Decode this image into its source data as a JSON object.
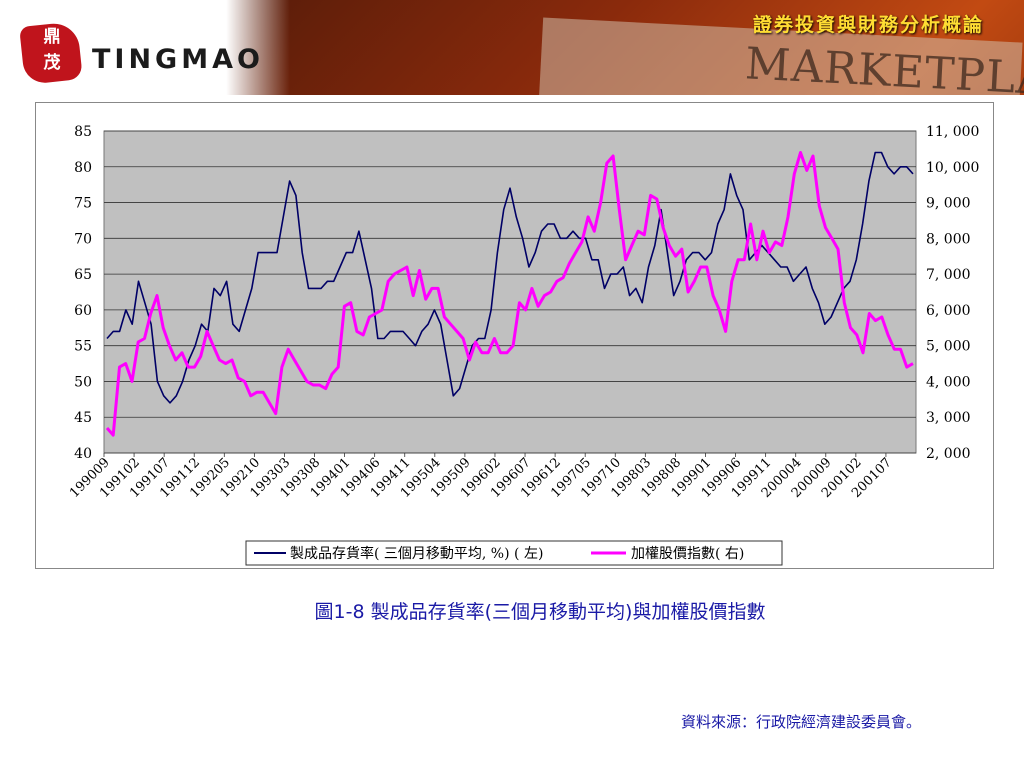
{
  "header": {
    "brand": "TINGMAO",
    "seal_text": "鼎茂",
    "slide_title": "證券投資與財務分析概論",
    "background_word": "MARKETPLACE"
  },
  "caption": "圖1-8 製成品存貨率(三個月移動平均)與加權股價指數",
  "source": "資料來源：行政院經濟建設委員會。",
  "colors": {
    "series1": "#000066",
    "series2": "#ff00ff",
    "plot_bg": "#c0c0c0",
    "caption": "#1a1aa6",
    "title": "#ffdd33"
  },
  "chart_data": {
    "type": "line",
    "x_tick_labels": [
      "199009",
      "199102",
      "199107",
      "199112",
      "199205",
      "199210",
      "199303",
      "199308",
      "199401",
      "199406",
      "199411",
      "199504",
      "199509",
      "199602",
      "199607",
      "199612",
      "199705",
      "199710",
      "199803",
      "199808",
      "199901",
      "199906",
      "199911",
      "200004",
      "200009",
      "200102",
      "200107"
    ],
    "y_left": {
      "min": 40,
      "max": 85,
      "ticks": [
        "85",
        "80",
        "75",
        "70",
        "65",
        "60",
        "55",
        "50",
        "45",
        "40"
      ]
    },
    "y_right": {
      "min": 2000,
      "max": 11000,
      "ticks": [
        "11, 000",
        "10, 000",
        "9, 000",
        "8, 000",
        "7, 000",
        "6, 000",
        "5, 000",
        "4, 000",
        "3, 000",
        "2, 000"
      ]
    },
    "grid": "horizontal",
    "legend_position": "bottom",
    "series": [
      {
        "name": "製成品存貨率( 三個月移動平均, %) ( 左)",
        "axis": "left",
        "values": [
          56,
          57,
          57,
          60,
          58,
          64,
          61,
          58,
          50,
          48,
          47,
          48,
          50,
          53,
          55,
          58,
          57,
          63,
          62,
          64,
          58,
          57,
          60,
          63,
          68,
          68,
          68,
          68,
          73,
          78,
          76,
          68,
          63,
          63,
          63,
          64,
          64,
          66,
          68,
          68,
          71,
          67,
          63,
          56,
          56,
          57,
          57,
          57,
          56,
          55,
          57,
          58,
          60,
          58,
          53,
          48,
          49,
          52,
          55,
          56,
          56,
          60,
          68,
          74,
          77,
          73,
          70,
          66,
          68,
          71,
          72,
          72,
          70,
          70,
          71,
          70,
          70,
          67,
          67,
          63,
          65,
          65,
          66,
          62,
          63,
          61,
          66,
          69,
          74,
          68,
          62,
          64,
          67,
          68,
          68,
          67,
          68,
          72,
          74,
          79,
          76,
          74,
          67,
          68,
          69,
          68,
          67,
          66,
          66,
          64,
          65,
          66,
          63,
          61,
          58,
          59,
          61,
          63,
          64,
          67,
          72,
          78,
          82,
          82,
          80,
          79,
          80,
          80,
          79
        ]
      },
      {
        "name": "加權股價指數( 右)",
        "axis": "right",
        "values": [
          2700,
          2500,
          4400,
          4500,
          4000,
          5100,
          5200,
          5900,
          6400,
          5500,
          5000,
          4600,
          4800,
          4400,
          4400,
          4700,
          5400,
          5000,
          4600,
          4500,
          4600,
          4100,
          4000,
          3600,
          3700,
          3700,
          3400,
          3100,
          4400,
          4900,
          4600,
          4300,
          4000,
          3900,
          3900,
          3800,
          4200,
          4400,
          6100,
          6200,
          5400,
          5300,
          5800,
          5900,
          6000,
          6800,
          7000,
          7100,
          7200,
          6400,
          7100,
          6300,
          6600,
          6600,
          5800,
          5600,
          5400,
          5200,
          4600,
          5100,
          4800,
          4800,
          5200,
          4800,
          4800,
          5000,
          6200,
          6000,
          6600,
          6100,
          6400,
          6500,
          6800,
          6900,
          7300,
          7600,
          7900,
          8600,
          8200,
          9000,
          10100,
          10300,
          8800,
          7400,
          7800,
          8200,
          8100,
          9200,
          9100,
          8300,
          7800,
          7500,
          7700,
          6500,
          6800,
          7200,
          7200,
          6400,
          6000,
          5400,
          6800,
          7400,
          7400,
          8400,
          7400,
          8200,
          7600,
          7900,
          7800,
          8600,
          9800,
          10400,
          9900,
          10300,
          8900,
          8300,
          8000,
          7700,
          6200,
          5500,
          5300,
          4800,
          5900,
          5700,
          5800,
          5300,
          4900,
          4900,
          4400,
          4500
        ]
      }
    ]
  }
}
